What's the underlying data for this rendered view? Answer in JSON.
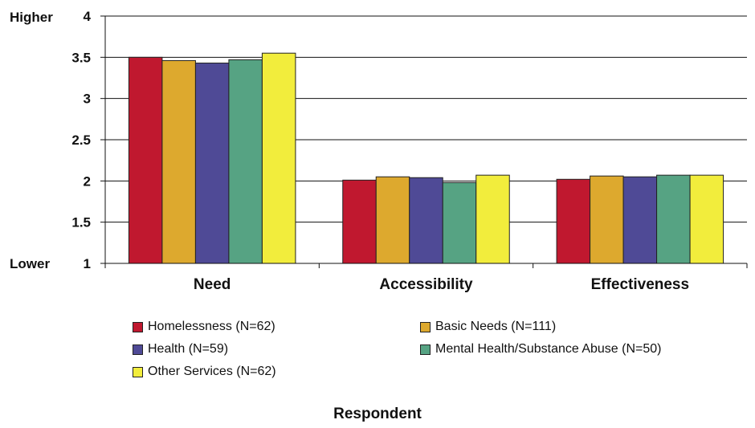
{
  "chart_data": {
    "type": "bar",
    "categories": [
      "Need",
      "Accessibility",
      "Effectiveness"
    ],
    "series": [
      {
        "name": "Homelessness (N=62)",
        "color": "#C0182F",
        "values": [
          3.5,
          2.01,
          2.02
        ]
      },
      {
        "name": "Basic Needs (N=111)",
        "color": "#DDA92E",
        "values": [
          3.46,
          2.05,
          2.06
        ]
      },
      {
        "name": "Health (N=59)",
        "color": "#4F4A96",
        "values": [
          3.43,
          2.04,
          2.05
        ]
      },
      {
        "name": "Mental Health/Substance Abuse (N=50)",
        "color": "#56A383",
        "values": [
          3.47,
          1.98,
          2.07
        ]
      },
      {
        "name": "Other Services (N=62)",
        "color": "#F2ED3C",
        "values": [
          3.55,
          2.07,
          2.07
        ]
      }
    ],
    "ylim": [
      1,
      4
    ],
    "yticks": [
      "1",
      "1.5",
      "2",
      "2.5",
      "3",
      "3.5",
      "4"
    ],
    "ylabel_top": "Higher",
    "ylabel_bottom": "Lower",
    "xlabel": "Respondent",
    "grid": true,
    "legend_position": "bottom"
  }
}
